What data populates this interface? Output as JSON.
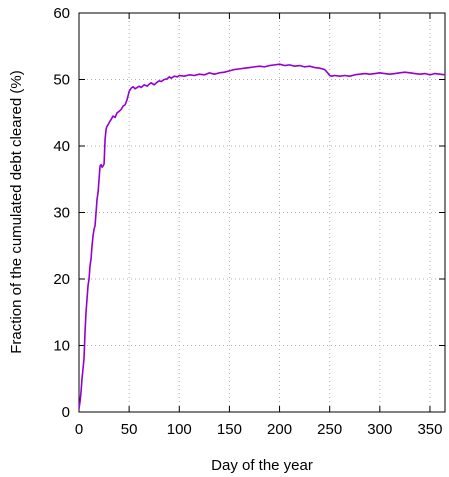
{
  "chart_data": {
    "type": "line",
    "title": "",
    "xlabel": "Day of the year",
    "ylabel": "Fraction of the cumulated debt cleared (%)",
    "xlim": [
      0,
      365
    ],
    "ylim": [
      0,
      60
    ],
    "xticks": [
      0,
      50,
      100,
      150,
      200,
      250,
      300,
      350
    ],
    "yticks": [
      0,
      10,
      20,
      30,
      40,
      50,
      60
    ],
    "grid": true,
    "series_color": "#9400d3",
    "series": [
      {
        "x": [
          0,
          1,
          2,
          3,
          4,
          5,
          6,
          7,
          8,
          9,
          10,
          11,
          12,
          13,
          14,
          15,
          16,
          17,
          18,
          19,
          20,
          21,
          22,
          23,
          24,
          25,
          26,
          27,
          28,
          29,
          30,
          32,
          34,
          36,
          38,
          40,
          42,
          44,
          46,
          48,
          50,
          52,
          54,
          56,
          58,
          60,
          62,
          65,
          68,
          70,
          72,
          75,
          78,
          80,
          82,
          85,
          88,
          90,
          92,
          95,
          98,
          100,
          105,
          110,
          115,
          120,
          125,
          130,
          135,
          140,
          145,
          150,
          155,
          160,
          165,
          170,
          175,
          180,
          185,
          190,
          195,
          200,
          205,
          210,
          215,
          220,
          225,
          230,
          235,
          240,
          245,
          248,
          250,
          252,
          255,
          260,
          265,
          270,
          275,
          280,
          285,
          290,
          295,
          300,
          305,
          310,
          315,
          320,
          325,
          330,
          335,
          340,
          345,
          350,
          355,
          360,
          365
        ],
        "y": [
          0.5,
          1.5,
          3,
          5,
          6.5,
          8,
          12,
          15,
          17,
          19,
          20,
          22,
          23,
          25,
          26.5,
          27.5,
          28,
          30,
          32,
          33,
          35,
          37,
          37.2,
          36.8,
          37,
          37.3,
          41,
          42.5,
          43,
          43.2,
          43.5,
          44,
          44.5,
          44.3,
          45,
          45.2,
          45.5,
          46,
          46.2,
          47,
          48.2,
          48.7,
          48.9,
          48.6,
          48.8,
          49,
          48.8,
          49.2,
          49.0,
          49.3,
          49.5,
          49.2,
          49.6,
          49.8,
          49.7,
          50.0,
          50.1,
          50.4,
          50.2,
          50.5,
          50.4,
          50.6,
          50.5,
          50.7,
          50.6,
          50.8,
          50.7,
          51.0,
          50.8,
          51.0,
          51.1,
          51.3,
          51.5,
          51.6,
          51.7,
          51.8,
          51.9,
          52.0,
          51.9,
          52.1,
          52.2,
          52.3,
          52.1,
          52.2,
          52.0,
          52.1,
          51.9,
          52.0,
          51.8,
          51.7,
          51.5,
          51.0,
          50.6,
          50.5,
          50.6,
          50.5,
          50.6,
          50.5,
          50.7,
          50.8,
          50.9,
          50.8,
          50.9,
          51.0,
          50.9,
          50.8,
          50.9,
          51.0,
          51.1,
          51.0,
          50.9,
          50.8,
          50.9,
          50.7,
          50.9,
          50.8,
          50.7
        ]
      }
    ]
  }
}
